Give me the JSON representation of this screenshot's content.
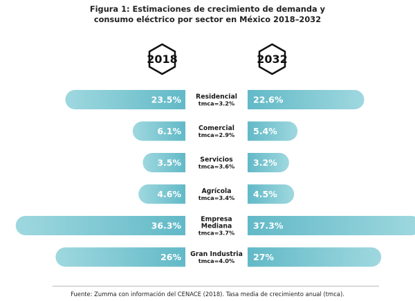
{
  "title_line1": "Figura 1: Estimaciones de crecimiento de demanda y",
  "title_line2": "consumo eléctrico por sector en México 2018–2032",
  "source": "Fuente: Zumma con información del CENACE (2018). Tasa media de crecimiento anual (tmca).",
  "colors": {
    "bar_start": "#62b9c7",
    "bar_end": "#9fd8df",
    "text": "#ffffff",
    "label": "#1a1a1a"
  },
  "chart_data": {
    "type": "bar",
    "orientation": "horizontal-diverging",
    "title": "Figura 1: Estimaciones de crecimiento de demanda y consumo eléctrico por sector en México 2018–2032",
    "categories": [
      {
        "name": [
          "Residencial"
        ],
        "tmca": "tmca=3.2%"
      },
      {
        "name": [
          "Comercial"
        ],
        "tmca": "tmca=2.9%"
      },
      {
        "name": [
          "Servicios"
        ],
        "tmca": "tmca=3.6%"
      },
      {
        "name": [
          "Agrícola"
        ],
        "tmca": "tmca=3.4%"
      },
      {
        "name": [
          "Empresa",
          "Mediana"
        ],
        "tmca": "tmca=3.7%"
      },
      {
        "name": [
          "Gran Industria"
        ],
        "tmca": "tmca=4.0%"
      }
    ],
    "series": [
      {
        "name": "2018",
        "values": [
          23.5,
          6.1,
          3.5,
          4.6,
          36.3,
          26
        ],
        "labels": [
          "23.5%",
          "6.1%",
          "3.5%",
          "4.6%",
          "36.3%",
          "26%"
        ]
      },
      {
        "name": "2032",
        "values": [
          22.6,
          5.4,
          3.2,
          4.5,
          37.3,
          27
        ],
        "labels": [
          "22.6%",
          "5.4%",
          "3.2%",
          "4.5%",
          "37.3%",
          "27%"
        ]
      }
    ],
    "unit": "%"
  }
}
